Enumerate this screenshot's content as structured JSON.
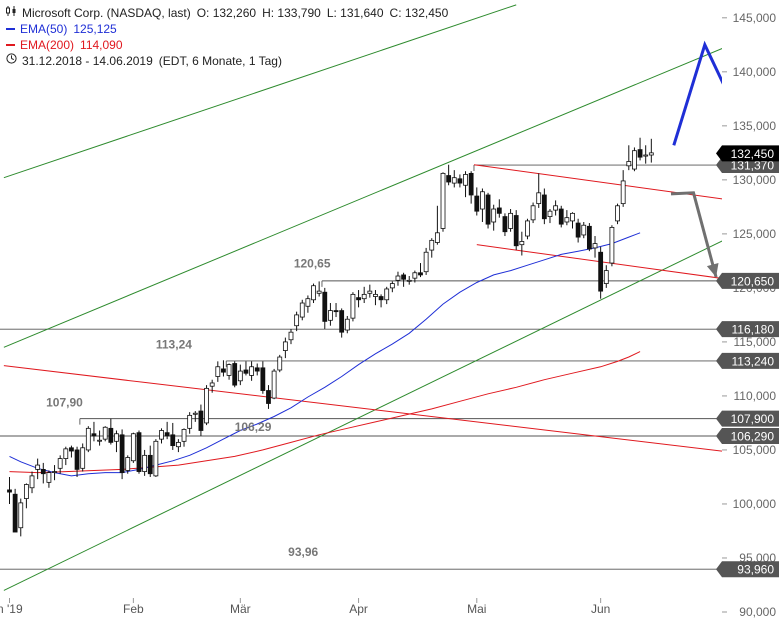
{
  "chart_data": {
    "type": "candlestick",
    "instrument": "Microsoft Corp. (NASDAQ, last)",
    "ohlc_labels": {
      "o": "O: 132,260",
      "h": "H: 133,790",
      "l": "L: 131,640",
      "c": "C: 132,450"
    },
    "legend": [
      {
        "label": "EMA(50)",
        "value": "125,125",
        "color": "#1f2fd6"
      },
      {
        "label": "EMA(200)",
        "value": "114,090",
        "color": "#e0191f"
      }
    ],
    "period": "31.12.2018 - 14.06.2019",
    "period_note": "(EDT, 6 Monate, 1 Tag)",
    "ylim": [
      90,
      146
    ],
    "y_ticks": [
      {
        "v": 90,
        "label": "90,000"
      },
      {
        "v": 95,
        "label": "95,000"
      },
      {
        "v": 100,
        "label": "100,000"
      },
      {
        "v": 105,
        "label": "105,000"
      },
      {
        "v": 110,
        "label": "110,000"
      },
      {
        "v": 115,
        "label": "115,000"
      },
      {
        "v": 120,
        "label": "120,000"
      },
      {
        "v": 125,
        "label": "125,000"
      },
      {
        "v": 130,
        "label": "130,000"
      },
      {
        "v": 135,
        "label": "135,000"
      },
      {
        "v": 140,
        "label": "140,000"
      },
      {
        "v": 145,
        "label": "145,000"
      }
    ],
    "x_ticks": [
      {
        "i": 0,
        "label": "n '19"
      },
      {
        "i": 22,
        "label": "Feb"
      },
      {
        "i": 41,
        "label": "Mär"
      },
      {
        "i": 62,
        "label": "Apr"
      },
      {
        "i": 83,
        "label": "Mai"
      },
      {
        "i": 105,
        "label": "Jun"
      }
    ],
    "candles": [
      [
        101.3,
        102.5,
        100.0,
        101.1
      ],
      [
        100.9,
        101.4,
        97.6,
        97.4
      ],
      [
        97.8,
        100.5,
        97.0,
        100.1
      ],
      [
        100.5,
        101.9,
        99.6,
        101.8
      ],
      [
        101.5,
        103.0,
        101.0,
        102.6
      ],
      [
        103.2,
        104.2,
        102.3,
        103.6
      ],
      [
        103.2,
        103.8,
        101.9,
        102.8
      ],
      [
        102.0,
        103.1,
        101.5,
        102.9
      ],
      [
        103.0,
        103.6,
        102.2,
        103.0
      ],
      [
        103.3,
        104.5,
        102.8,
        104.2
      ],
      [
        104.2,
        105.3,
        103.6,
        105.1
      ],
      [
        105.2,
        105.4,
        104.3,
        104.9
      ],
      [
        105.0,
        105.3,
        102.5,
        103.2
      ],
      [
        103.3,
        105.6,
        103.0,
        105.2
      ],
      [
        105.0,
        107.2,
        104.8,
        107.0
      ],
      [
        106.5,
        107.6,
        105.8,
        106.3
      ],
      [
        105.9,
        106.8,
        105.4,
        105.9
      ],
      [
        106.0,
        107.2,
        105.8,
        107.1
      ],
      [
        107.0,
        107.9,
        105.5,
        105.7
      ],
      [
        105.8,
        106.8,
        104.8,
        106.5
      ],
      [
        106.4,
        106.9,
        102.3,
        102.9
      ],
      [
        103.1,
        104.5,
        102.8,
        104.3
      ],
      [
        104.0,
        106.6,
        103.8,
        106.5
      ],
      [
        106.6,
        106.8,
        102.8,
        103.0
      ],
      [
        103.0,
        105.0,
        102.6,
        104.5
      ],
      [
        104.5,
        105.4,
        102.5,
        102.8
      ],
      [
        102.6,
        106.0,
        102.5,
        105.8
      ],
      [
        106.0,
        107.0,
        105.6,
        106.8
      ],
      [
        106.6,
        107.6,
        106.0,
        106.3
      ],
      [
        106.4,
        107.5,
        105.0,
        105.4
      ],
      [
        105.3,
        106.0,
        104.8,
        105.7
      ],
      [
        105.8,
        107.0,
        105.3,
        106.9
      ],
      [
        107.0,
        108.5,
        106.5,
        108.2
      ],
      [
        108.3,
        108.6,
        107.6,
        108.4
      ],
      [
        108.6,
        109.2,
        106.3,
        106.8
      ],
      [
        107.5,
        111.0,
        107.3,
        110.7
      ],
      [
        110.9,
        111.5,
        110.3,
        111.2
      ],
      [
        111.8,
        113.2,
        111.3,
        112.7
      ],
      [
        112.5,
        113.3,
        111.8,
        112.2
      ],
      [
        111.9,
        113.0,
        111.5,
        112.9
      ],
      [
        113.0,
        113.2,
        110.8,
        111.0
      ],
      [
        111.4,
        112.9,
        111.0,
        112.3
      ],
      [
        112.4,
        113.2,
        111.9,
        112.1
      ],
      [
        111.9,
        113.2,
        111.4,
        112.7
      ],
      [
        112.6,
        113.0,
        111.9,
        112.3
      ],
      [
        112.6,
        113.2,
        110.2,
        110.5
      ],
      [
        110.5,
        111.0,
        108.8,
        109.3
      ],
      [
        109.8,
        112.5,
        109.7,
        112.3
      ],
      [
        112.4,
        113.8,
        112.2,
        113.6
      ],
      [
        114.2,
        115.4,
        113.5,
        115.0
      ],
      [
        115.2,
        116.2,
        114.8,
        115.9
      ],
      [
        116.5,
        117.8,
        116.0,
        117.5
      ],
      [
        117.3,
        118.9,
        117.0,
        118.6
      ],
      [
        118.3,
        119.3,
        117.7,
        119.0
      ],
      [
        118.9,
        120.4,
        118.6,
        120.2
      ],
      [
        119.5,
        120.6,
        119.2,
        119.7
      ],
      [
        119.6,
        120.0,
        116.2,
        116.9
      ],
      [
        117.0,
        118.6,
        116.5,
        117.9
      ],
      [
        117.9,
        118.6,
        117.3,
        117.8
      ],
      [
        117.9,
        118.1,
        115.4,
        115.9
      ],
      [
        116.1,
        117.4,
        115.8,
        117.1
      ],
      [
        117.2,
        119.6,
        116.9,
        119.4
      ],
      [
        119.1,
        119.8,
        118.2,
        118.9
      ],
      [
        119.0,
        120.1,
        118.6,
        119.4
      ],
      [
        119.5,
        120.3,
        119.1,
        119.7
      ],
      [
        119.2,
        119.8,
        118.4,
        119.4
      ],
      [
        119.2,
        119.4,
        118.2,
        118.9
      ],
      [
        118.9,
        120.1,
        118.5,
        119.9
      ],
      [
        120.0,
        120.6,
        119.6,
        120.4
      ],
      [
        120.7,
        121.5,
        120.2,
        121.1
      ],
      [
        121.2,
        121.4,
        120.1,
        120.8
      ],
      [
        120.7,
        121.1,
        120.3,
        120.7
      ],
      [
        120.9,
        121.6,
        120.5,
        121.4
      ],
      [
        121.4,
        122.3,
        121.0,
        121.2
      ],
      [
        121.5,
        123.7,
        121.2,
        123.3
      ],
      [
        123.5,
        124.6,
        122.8,
        124.4
      ],
      [
        124.2,
        127.6,
        124.0,
        125.1
      ],
      [
        125.5,
        130.7,
        125.2,
        130.6
      ],
      [
        130.4,
        131.4,
        129.5,
        129.8
      ],
      [
        129.7,
        130.9,
        129.3,
        130.2
      ],
      [
        130.1,
        130.5,
        129.3,
        129.7
      ],
      [
        129.5,
        130.8,
        128.4,
        130.5
      ],
      [
        130.6,
        130.8,
        127.8,
        128.6
      ],
      [
        128.5,
        129.3,
        126.7,
        127.1
      ],
      [
        127.3,
        129.2,
        126.1,
        128.9
      ],
      [
        128.6,
        128.8,
        125.5,
        125.9
      ],
      [
        126.1,
        127.7,
        125.3,
        127.3
      ],
      [
        127.4,
        128.2,
        126.5,
        126.9
      ],
      [
        126.6,
        126.9,
        124.8,
        125.2
      ],
      [
        125.5,
        127.3,
        125.2,
        126.9
      ],
      [
        126.7,
        127.2,
        123.5,
        123.9
      ],
      [
        124.0,
        125.2,
        123.0,
        124.3
      ],
      [
        124.8,
        126.4,
        124.5,
        126.2
      ],
      [
        126.3,
        127.9,
        126.0,
        127.6
      ],
      [
        127.8,
        130.6,
        127.4,
        128.8
      ],
      [
        128.6,
        129.2,
        125.9,
        126.4
      ],
      [
        126.6,
        127.3,
        126.0,
        127.1
      ],
      [
        127.2,
        128.1,
        126.7,
        127.6
      ],
      [
        127.3,
        127.6,
        125.6,
        125.9
      ],
      [
        126.1,
        127.2,
        125.8,
        126.5
      ],
      [
        126.2,
        127.0,
        125.5,
        126.9
      ],
      [
        126.0,
        126.4,
        124.2,
        124.7
      ],
      [
        124.9,
        126.1,
        124.6,
        125.8
      ],
      [
        125.7,
        126.0,
        123.4,
        123.6
      ],
      [
        123.7,
        124.8,
        122.8,
        124.1
      ],
      [
        123.3,
        123.8,
        119.0,
        119.7
      ],
      [
        120.4,
        122.1,
        120.0,
        121.6
      ],
      [
        122.3,
        125.8,
        122.0,
        125.6
      ],
      [
        126.2,
        127.8,
        125.9,
        127.6
      ],
      [
        127.8,
        130.9,
        127.5,
        129.9
      ],
      [
        131.3,
        133.2,
        130.9,
        131.7
      ],
      [
        131.0,
        133.0,
        130.8,
        132.7
      ],
      [
        132.8,
        133.9,
        131.8,
        132.1
      ],
      [
        132.2,
        133.2,
        131.5,
        132.3
      ],
      [
        132.3,
        133.8,
        131.6,
        132.5
      ]
    ],
    "ema50": [
      [
        0,
        104.4
      ],
      [
        2,
        103.9
      ],
      [
        5,
        103.3
      ],
      [
        8,
        102.9
      ],
      [
        11,
        102.6
      ],
      [
        14,
        102.8
      ],
      [
        17,
        102.9
      ],
      [
        20,
        102.9
      ],
      [
        23,
        103.2
      ],
      [
        26,
        103.6
      ],
      [
        29,
        104.0
      ],
      [
        32,
        104.5
      ],
      [
        35,
        105.2
      ],
      [
        38,
        106.0
      ],
      [
        41,
        106.8
      ],
      [
        44,
        107.4
      ],
      [
        47,
        108.1
      ],
      [
        50,
        108.9
      ],
      [
        53,
        109.9
      ],
      [
        56,
        110.8
      ],
      [
        59,
        111.8
      ],
      [
        62,
        112.9
      ],
      [
        65,
        113.9
      ],
      [
        68,
        114.8
      ],
      [
        71,
        115.8
      ],
      [
        74,
        117.1
      ],
      [
        77,
        118.5
      ],
      [
        80,
        119.6
      ],
      [
        83,
        120.5
      ],
      [
        86,
        121.2
      ],
      [
        89,
        121.6
      ],
      [
        92,
        122.1
      ],
      [
        95,
        122.6
      ],
      [
        98,
        123.1
      ],
      [
        101,
        123.4
      ],
      [
        104,
        123.7
      ],
      [
        107,
        124.1
      ],
      [
        110,
        124.7
      ],
      [
        112,
        125.1
      ]
    ],
    "ema200": [
      [
        0,
        103.0
      ],
      [
        5,
        102.9
      ],
      [
        10,
        103.0
      ],
      [
        15,
        103.1
      ],
      [
        20,
        103.2
      ],
      [
        25,
        103.4
      ],
      [
        30,
        103.6
      ],
      [
        35,
        104.0
      ],
      [
        40,
        104.4
      ],
      [
        45,
        105.0
      ],
      [
        50,
        105.7
      ],
      [
        55,
        106.4
      ],
      [
        60,
        107.0
      ],
      [
        65,
        107.6
      ],
      [
        70,
        108.2
      ],
      [
        75,
        108.8
      ],
      [
        80,
        109.5
      ],
      [
        85,
        110.2
      ],
      [
        90,
        110.8
      ],
      [
        95,
        111.5
      ],
      [
        100,
        112.1
      ],
      [
        105,
        112.7
      ],
      [
        108,
        113.2
      ],
      [
        110,
        113.6
      ],
      [
        112,
        114.1
      ]
    ],
    "h_levels": [
      {
        "value": 131.37,
        "label": "131,370",
        "from": 82.5
      },
      {
        "value": 120.65,
        "label": "120,650",
        "from": 55.5,
        "text": "120,65"
      },
      {
        "value": 116.18,
        "label": "116,180",
        "from": 0
      },
      {
        "value": 113.24,
        "label": "113,240",
        "from": 38.5,
        "text": "113,24"
      },
      {
        "value": 107.9,
        "label": "107,900",
        "from": 12.5,
        "text": "107,90"
      },
      {
        "value": 106.29,
        "label": "106,290",
        "from": 0,
        "text": "106,29"
      },
      {
        "value": 93.96,
        "label": "93,960",
        "from": 0,
        "text": "93,96"
      }
    ],
    "last_price": {
      "value": 132.45,
      "label": "132,450"
    },
    "trend_lines": [
      {
        "color": "#2e8b2e",
        "points": [
          [
            -1,
            130.2
          ],
          [
            90,
            146.2
          ]
        ]
      },
      {
        "color": "#2e8b2e",
        "points": [
          [
            -1,
            114.5
          ],
          [
            142,
            145.5
          ]
        ]
      },
      {
        "color": "#2e8b2e",
        "points": [
          [
            -1,
            92.0
          ],
          [
            141,
            128.0
          ]
        ]
      },
      {
        "color": "#e0191f",
        "points": [
          [
            -1,
            112.8
          ],
          [
            141,
            104.0
          ]
        ]
      },
      {
        "color": "#e0191f",
        "points": [
          [
            82.5,
            131.4
          ],
          [
            141,
            127.2
          ]
        ]
      },
      {
        "color": "#e0191f",
        "points": [
          [
            83,
            124.0
          ],
          [
            129,
            120.7
          ]
        ]
      }
    ],
    "forecast_paths": [
      {
        "color": "#1f2fd6",
        "points": [
          [
            118,
            133.2
          ],
          [
            123.5,
            142.5
          ],
          [
            128.5,
            137.0
          ],
          [
            132.5,
            145.0
          ]
        ]
      },
      {
        "color": "#707070",
        "points": [
          [
            117.5,
            128.7
          ],
          [
            121.5,
            128.8
          ],
          [
            125.5,
            121.0
          ]
        ]
      }
    ]
  }
}
